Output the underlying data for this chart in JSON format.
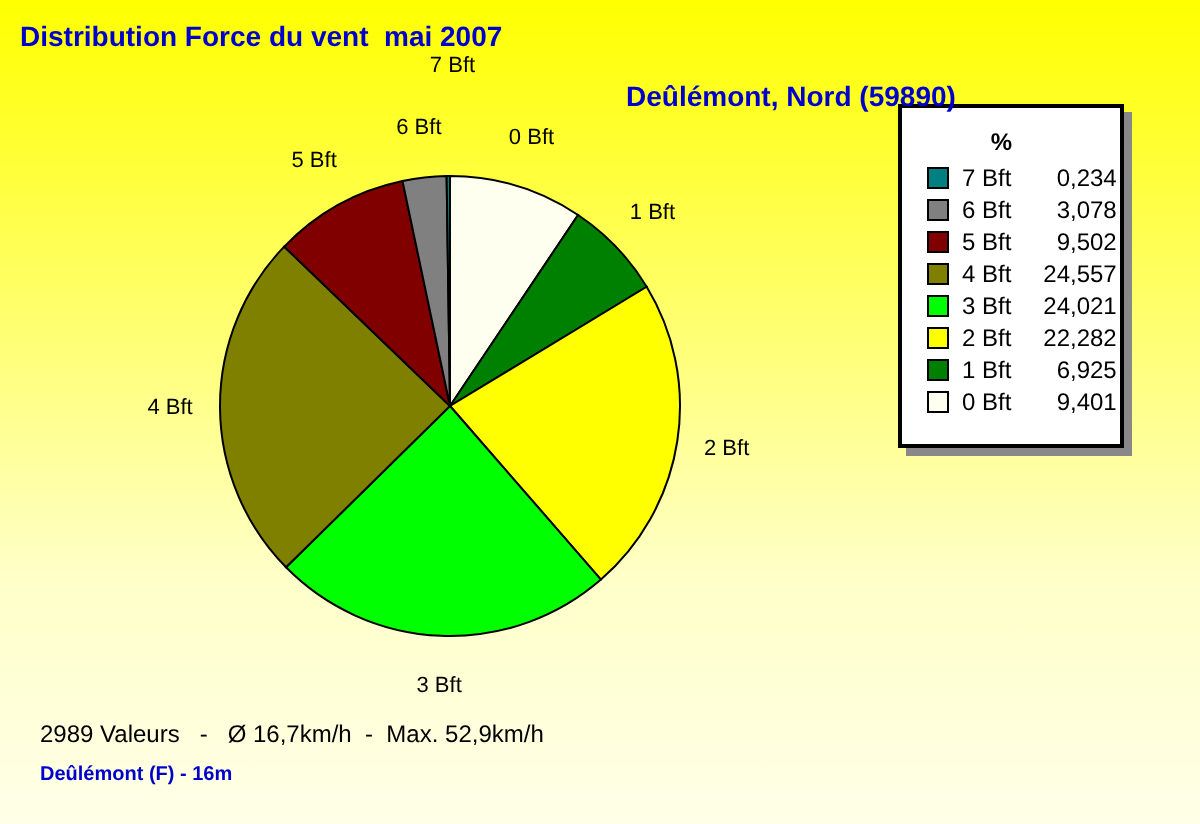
{
  "chart_data": {
    "type": "pie",
    "title": "Distribution Force du vent  mai 2007",
    "subtitle": "Deûlémont, Nord (59890)",
    "categories": [
      "0 Bft",
      "1 Bft",
      "2 Bft",
      "3 Bft",
      "4 Bft",
      "5 Bft",
      "6 Bft",
      "7 Bft"
    ],
    "values": [
      9.401,
      6.925,
      22.282,
      24.021,
      24.557,
      9.502,
      3.078,
      0.234
    ],
    "value_labels": [
      "9,401",
      "6,925",
      "22,282",
      "24,021",
      "24,557",
      "9,502",
      "3,078",
      "0,234"
    ],
    "colors": [
      "#fffff0",
      "#008000",
      "#ffff00",
      "#00ff00",
      "#808000",
      "#800000",
      "#808080",
      "#008080"
    ],
    "legend": "top right",
    "legend_title": "%",
    "annotations": [
      "2989 Valeurs   -   Ø 16,7km/h  -  Max. 52,9km/h",
      "Deûlémont (F) - 16m"
    ]
  }
}
